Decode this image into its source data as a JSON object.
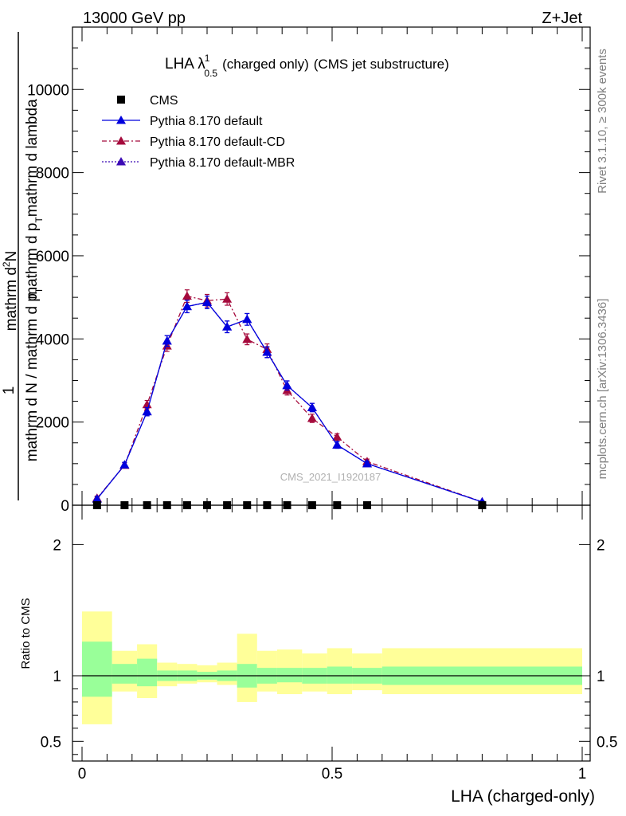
{
  "header": {
    "left": "13000 GeV pp",
    "right": "Z+Jet"
  },
  "chart_data": {
    "type": "line",
    "title": {
      "main": "LHA λ",
      "superscript": "1",
      "subscript": "0.5",
      "small": "(charged only)",
      "rest": "(CMS jet substructure)"
    },
    "ylabel": {
      "prefix": "1",
      "numerator": "mathrm d",
      "numerator_sup": "2",
      "numerator_tail": "N",
      "denominator": "mathrm d p",
      "denominator_sub": "T",
      "denominator_tail": "mathrm d lambda",
      "lower_numerator": "mathrm d N / mathrm d p",
      "lower_sub": "T"
    },
    "xlabel": "LHA (charged-only)",
    "ratio_ylabel": "Ratio to CMS",
    "xlim": [
      0,
      1
    ],
    "ylim": [
      0,
      11500
    ],
    "ratio_ylim": [
      0.35,
      2.3
    ],
    "x_ticks": [
      {
        "value": 0,
        "label": "0"
      },
      {
        "value": 0.5,
        "label": "0.5"
      },
      {
        "value": 1,
        "label": "1"
      }
    ],
    "y_ticks": [
      {
        "value": 0,
        "label": "0"
      },
      {
        "value": 2000,
        "label": "2000"
      },
      {
        "value": 4000,
        "label": "4000"
      },
      {
        "value": 6000,
        "label": "6000"
      },
      {
        "value": 8000,
        "label": "8000"
      },
      {
        "value": 10000,
        "label": "10000"
      }
    ],
    "ratio_ticks": [
      {
        "value": 0.5,
        "label": "0.5"
      },
      {
        "value": 1,
        "label": "1"
      },
      {
        "value": 2,
        "label": "2"
      }
    ],
    "legend_position": "top-left",
    "x": [
      0.03,
      0.085,
      0.13,
      0.17,
      0.21,
      0.25,
      0.29,
      0.33,
      0.37,
      0.41,
      0.46,
      0.51,
      0.57,
      0.8
    ],
    "series": [
      {
        "name": "CMS",
        "marker": "square",
        "color": "#000000",
        "values": [
          0,
          0,
          0,
          0,
          0,
          0,
          0,
          0,
          0,
          0,
          0,
          0,
          0,
          0
        ]
      },
      {
        "name": "Pythia 8.170 default",
        "marker": "triangle",
        "line": "solid",
        "color": "#0000dd",
        "values": [
          150,
          970,
          2250,
          3950,
          4780,
          4880,
          4290,
          4470,
          3680,
          2880,
          2350,
          1450,
          1000,
          80
        ],
        "errors": [
          50,
          60,
          100,
          130,
          150,
          150,
          140,
          140,
          130,
          110,
          100,
          80,
          60,
          20
        ]
      },
      {
        "name": "Pythia 8.170 default-CD",
        "marker": "triangle",
        "line": "dashdot",
        "color": "#a50a3c",
        "values": [
          170,
          960,
          2420,
          3830,
          5030,
          4920,
          4960,
          3990,
          3750,
          2760,
          2090,
          1640,
          1050,
          80
        ],
        "errors": [
          50,
          60,
          100,
          130,
          150,
          150,
          150,
          130,
          130,
          110,
          100,
          80,
          60,
          20
        ]
      },
      {
        "name": "Pythia 8.170 default-MBR",
        "marker": "triangle",
        "line": "dotted",
        "color": "#3b0ab5",
        "values": [
          150,
          970,
          2250,
          3950,
          4780,
          4880,
          4290,
          4470,
          3680,
          2880,
          2350,
          1450,
          1000,
          80
        ],
        "errors": [
          50,
          60,
          100,
          130,
          150,
          150,
          140,
          140,
          130,
          110,
          100,
          80,
          60,
          20
        ]
      }
    ],
    "ratio_bands": [
      {
        "x0": 0.0,
        "x1": 0.06,
        "inner": [
          0.84,
          1.26
        ],
        "outer": [
          0.63,
          1.49
        ]
      },
      {
        "x0": 0.06,
        "x1": 0.11,
        "inner": [
          0.94,
          1.09
        ],
        "outer": [
          0.88,
          1.19
        ]
      },
      {
        "x0": 0.11,
        "x1": 0.15,
        "inner": [
          0.92,
          1.13
        ],
        "outer": [
          0.83,
          1.24
        ]
      },
      {
        "x0": 0.15,
        "x1": 0.19,
        "inner": [
          0.96,
          1.04
        ],
        "outer": [
          0.92,
          1.1
        ]
      },
      {
        "x0": 0.19,
        "x1": 0.23,
        "inner": [
          0.96,
          1.04
        ],
        "outer": [
          0.94,
          1.09
        ]
      },
      {
        "x0": 0.23,
        "x1": 0.27,
        "inner": [
          0.97,
          1.03
        ],
        "outer": [
          0.95,
          1.08
        ]
      },
      {
        "x0": 0.27,
        "x1": 0.31,
        "inner": [
          0.96,
          1.04
        ],
        "outer": [
          0.93,
          1.1
        ]
      },
      {
        "x0": 0.31,
        "x1": 0.35,
        "inner": [
          0.91,
          1.09
        ],
        "outer": [
          0.8,
          1.32
        ]
      },
      {
        "x0": 0.35,
        "x1": 0.39,
        "inner": [
          0.94,
          1.06
        ],
        "outer": [
          0.88,
          1.19
        ]
      },
      {
        "x0": 0.39,
        "x1": 0.44,
        "inner": [
          0.95,
          1.06
        ],
        "outer": [
          0.86,
          1.2
        ]
      },
      {
        "x0": 0.44,
        "x1": 0.49,
        "inner": [
          0.94,
          1.06
        ],
        "outer": [
          0.88,
          1.17
        ]
      },
      {
        "x0": 0.49,
        "x1": 0.54,
        "inner": [
          0.94,
          1.07
        ],
        "outer": [
          0.86,
          1.21
        ]
      },
      {
        "x0": 0.54,
        "x1": 0.6,
        "inner": [
          0.94,
          1.06
        ],
        "outer": [
          0.89,
          1.17
        ]
      },
      {
        "x0": 0.6,
        "x1": 1.0,
        "inner": [
          0.93,
          1.07
        ],
        "outer": [
          0.86,
          1.21
        ]
      }
    ],
    "colors": {
      "band_inner": "#99ff99",
      "band_outer": "#ffff99"
    },
    "watermark": "CMS_2021_I1920187",
    "right_label_top": "Rivet 3.1.10, ≥ 300k events",
    "right_label_bottom": "mcplots.cern.ch [arXiv:1306.3436]"
  }
}
